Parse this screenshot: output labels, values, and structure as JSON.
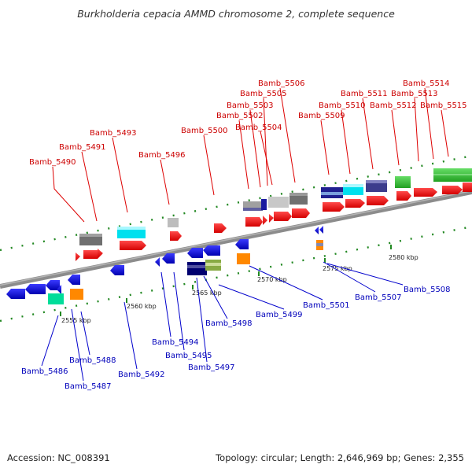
{
  "title": "Burkholderia cepacia AMMD chromosome 2, complete sequence",
  "footer": {
    "accession": "Accession: NC_008391",
    "summary": "Topology: circular; Length: 2,646,969 bp; Genes: 2,355"
  },
  "colors": {
    "forward_label": "#cc0000",
    "reverse_label": "#0000bb",
    "backbone": "#8c8c8c",
    "tick": "#228822"
  },
  "ticks": {
    "t2555": "2555 kbp",
    "t2560": "2560 kbp",
    "t2565": "2565 kbp",
    "t2570": "2570 kbp",
    "t2575": "2575 kbp",
    "t2580": "2580 kbp"
  },
  "forward_labels": {
    "g5490": "Bamb_5490",
    "g5491": "Bamb_5491",
    "g5493": "Bamb_5493",
    "g5496": "Bamb_5496",
    "g5500": "Bamb_5500",
    "g5502": "Bamb_5502",
    "g5503": "Bamb_5503",
    "g5504": "Bamb_5504",
    "g5505": "Bamb_5505",
    "g5506": "Bamb_5506",
    "g5509": "Bamb_5509",
    "g5510": "Bamb_5510",
    "g5511": "Bamb_5511",
    "g5512": "Bamb_5512",
    "g5513": "Bamb_5513",
    "g5514": "Bamb_5514",
    "g5515": "Bamb_5515"
  },
  "reverse_labels": {
    "g5486": "Bamb_5486",
    "g5487": "Bamb_5487",
    "g5488": "Bamb_5488",
    "g5492": "Bamb_5492",
    "g5494": "Bamb_5494",
    "g5495": "Bamb_5495",
    "g5497": "Bamb_5497",
    "g5498": "Bamb_5498",
    "g5499": "Bamb_5499",
    "g5501": "Bamb_5501",
    "g5507": "Bamb_5507",
    "g5508": "Bamb_5508"
  }
}
